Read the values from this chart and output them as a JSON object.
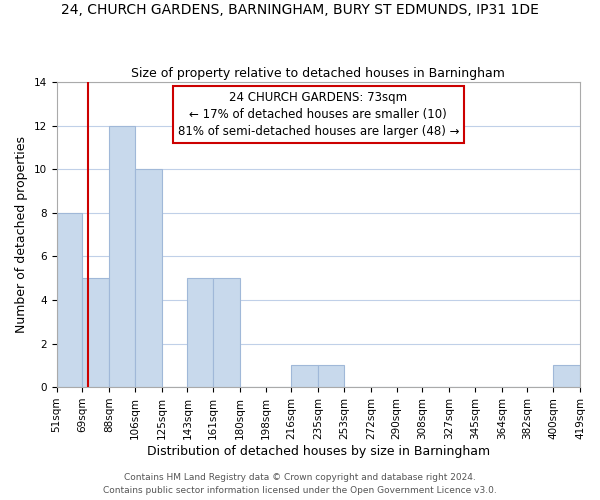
{
  "title": "24, CHURCH GARDENS, BARNINGHAM, BURY ST EDMUNDS, IP31 1DE",
  "subtitle": "Size of property relative to detached houses in Barningham",
  "xlabel": "Distribution of detached houses by size in Barningham",
  "ylabel": "Number of detached properties",
  "bin_edges": [
    51,
    69,
    88,
    106,
    125,
    143,
    161,
    180,
    198,
    216,
    235,
    253,
    272,
    290,
    308,
    327,
    345,
    364,
    382,
    400,
    419
  ],
  "counts": [
    8,
    5,
    12,
    10,
    0,
    5,
    5,
    0,
    0,
    1,
    1,
    0,
    0,
    0,
    0,
    0,
    0,
    0,
    0,
    1
  ],
  "bar_color": "#c8d9ec",
  "bar_edgecolor": "#a0b8d8",
  "subject_value": 73,
  "red_line_color": "#cc0000",
  "annotation_line1": "24 CHURCH GARDENS: 73sqm",
  "annotation_line2": "← 17% of detached houses are smaller (10)",
  "annotation_line3": "81% of semi-detached houses are larger (48) →",
  "annotation_box_edgecolor": "#cc0000",
  "annotation_box_facecolor": "#ffffff",
  "ylim": [
    0,
    14
  ],
  "yticks": [
    0,
    2,
    4,
    6,
    8,
    10,
    12,
    14
  ],
  "tick_labels": [
    "51sqm",
    "69sqm",
    "88sqm",
    "106sqm",
    "125sqm",
    "143sqm",
    "161sqm",
    "180sqm",
    "198sqm",
    "216sqm",
    "235sqm",
    "253sqm",
    "272sqm",
    "290sqm",
    "308sqm",
    "327sqm",
    "345sqm",
    "364sqm",
    "382sqm",
    "400sqm",
    "419sqm"
  ],
  "footer1": "Contains HM Land Registry data © Crown copyright and database right 2024.",
  "footer2": "Contains public sector information licensed under the Open Government Licence v3.0.",
  "background_color": "#ffffff",
  "grid_color": "#c0d0e8",
  "title_fontsize": 10,
  "subtitle_fontsize": 9,
  "axis_label_fontsize": 9,
  "tick_fontsize": 7.5,
  "annotation_fontsize": 8.5,
  "footer_fontsize": 6.5
}
